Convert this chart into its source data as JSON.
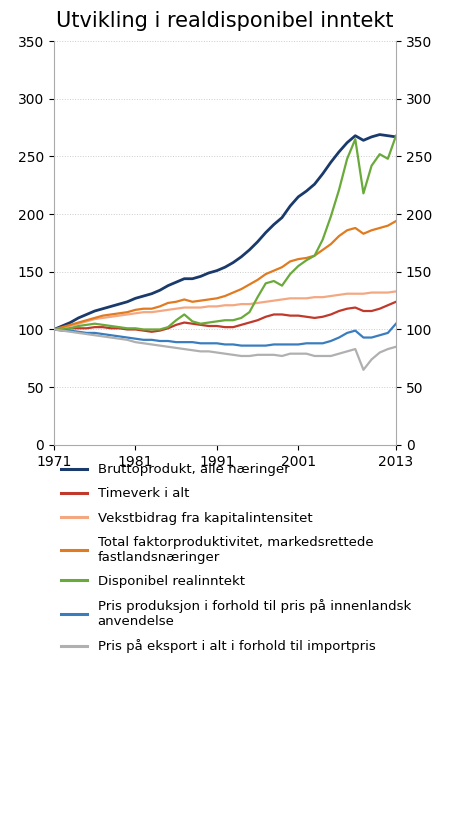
{
  "title": "Utvikling i realdisponibel inntekt",
  "years": [
    1971,
    1972,
    1973,
    1974,
    1975,
    1976,
    1977,
    1978,
    1979,
    1980,
    1981,
    1982,
    1983,
    1984,
    1985,
    1986,
    1987,
    1988,
    1989,
    1990,
    1991,
    1992,
    1993,
    1994,
    1995,
    1996,
    1997,
    1998,
    1999,
    2000,
    2001,
    2002,
    2003,
    2004,
    2005,
    2006,
    2007,
    2008,
    2009,
    2010,
    2011,
    2012,
    2013
  ],
  "bruttoprodukt": [
    100,
    103,
    106,
    110,
    113,
    116,
    118,
    120,
    122,
    124,
    127,
    129,
    131,
    134,
    138,
    141,
    144,
    144,
    146,
    149,
    151,
    154,
    158,
    163,
    169,
    176,
    184,
    191,
    197,
    207,
    215,
    220,
    226,
    235,
    245,
    254,
    262,
    268,
    264,
    267,
    269,
    268,
    267
  ],
  "timeverk": [
    100,
    100,
    101,
    101,
    101,
    102,
    102,
    101,
    101,
    100,
    100,
    99,
    98,
    99,
    101,
    104,
    106,
    105,
    104,
    103,
    103,
    102,
    102,
    104,
    106,
    108,
    111,
    113,
    113,
    112,
    112,
    111,
    110,
    111,
    113,
    116,
    118,
    119,
    116,
    116,
    118,
    121,
    124
  ],
  "kapitalintensitet": [
    100,
    101,
    103,
    105,
    107,
    109,
    110,
    111,
    112,
    113,
    114,
    115,
    115,
    116,
    117,
    118,
    119,
    119,
    119,
    120,
    120,
    121,
    121,
    122,
    122,
    123,
    124,
    125,
    126,
    127,
    127,
    127,
    128,
    128,
    129,
    130,
    131,
    131,
    131,
    132,
    132,
    132,
    133
  ],
  "tfp": [
    100,
    102,
    104,
    106,
    108,
    110,
    112,
    113,
    114,
    115,
    117,
    118,
    118,
    120,
    123,
    124,
    126,
    124,
    125,
    126,
    127,
    129,
    132,
    135,
    139,
    143,
    148,
    151,
    154,
    159,
    161,
    162,
    164,
    169,
    174,
    181,
    186,
    188,
    183,
    186,
    188,
    190,
    194
  ],
  "disponibel": [
    100,
    100,
    101,
    103,
    104,
    105,
    104,
    103,
    102,
    101,
    101,
    100,
    100,
    100,
    102,
    108,
    113,
    107,
    105,
    106,
    107,
    108,
    108,
    110,
    115,
    128,
    140,
    142,
    138,
    148,
    155,
    160,
    164,
    178,
    198,
    221,
    248,
    265,
    218,
    242,
    252,
    248,
    268
  ],
  "pris_prod": [
    100,
    99,
    99,
    98,
    97,
    97,
    96,
    95,
    94,
    93,
    92,
    91,
    91,
    90,
    90,
    89,
    89,
    89,
    88,
    88,
    88,
    87,
    87,
    86,
    86,
    86,
    86,
    87,
    87,
    87,
    87,
    88,
    88,
    88,
    90,
    93,
    97,
    99,
    93,
    93,
    95,
    97,
    105
  ],
  "pris_eksport": [
    100,
    99,
    98,
    97,
    96,
    95,
    94,
    93,
    92,
    91,
    89,
    88,
    87,
    86,
    85,
    84,
    83,
    82,
    81,
    81,
    80,
    79,
    78,
    77,
    77,
    78,
    78,
    78,
    77,
    79,
    79,
    79,
    77,
    77,
    77,
    79,
    81,
    83,
    65,
    74,
    80,
    83,
    85
  ],
  "colors": {
    "bruttoprodukt": "#1a3a6b",
    "timeverk": "#c0392b",
    "kapitalintensitet": "#f4a882",
    "tfp": "#e07b20",
    "disponibel": "#6aaa3a",
    "pris_prod": "#3a7dbf",
    "pris_eksport": "#b0b0b0"
  },
  "legend": [
    "Bruttoprodukt, alle næringer",
    "Timeverk i alt",
    "Vekstbidrag fra kapitalintensitet",
    "Total faktorproduktivitet, markedsrettede\nfastlandsnæringer",
    "Disponibel realinntekt",
    "Pris produksjon i forhold til pris på innenlandsk\nanvendelse",
    "Pris på eksport i alt i forhold til importpris"
  ],
  "ylim": [
    0,
    350
  ],
  "yticks": [
    0,
    50,
    100,
    150,
    200,
    250,
    300,
    350
  ],
  "xticks": [
    1971,
    1981,
    1991,
    2001,
    2013
  ],
  "xlim": [
    1971,
    2013
  ]
}
